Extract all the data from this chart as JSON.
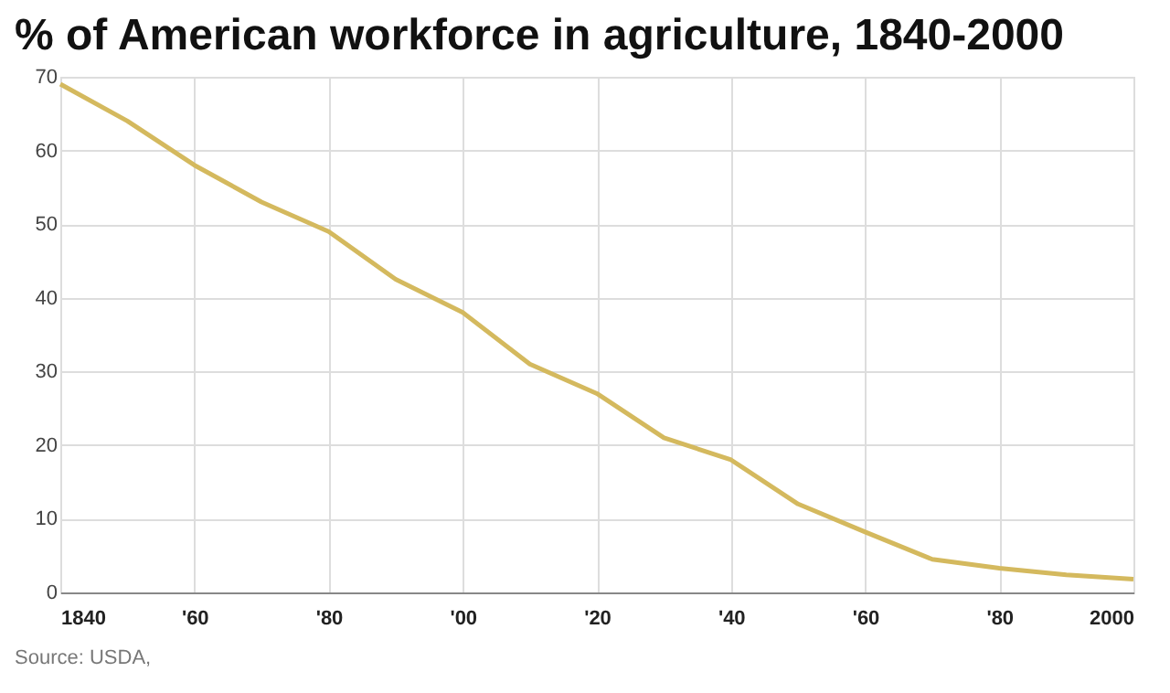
{
  "chart_data": {
    "type": "line",
    "title": "% of American workforce in agriculture, 1840-2000",
    "x": [
      1840,
      1850,
      1860,
      1870,
      1880,
      1890,
      1900,
      1910,
      1920,
      1930,
      1940,
      1950,
      1960,
      1970,
      1980,
      1990,
      2000
    ],
    "series": [
      {
        "color": "#d4b95e",
        "values": [
          69,
          64,
          58,
          53,
          49,
          42.5,
          38,
          31,
          27,
          21,
          18,
          12,
          8.2,
          4.5,
          3.3,
          2.4,
          1.8
        ]
      }
    ],
    "xlim": [
      1840,
      2000
    ],
    "xticks": [
      {
        "value": 1840,
        "label": "1840"
      },
      {
        "value": 1860,
        "label": "'60"
      },
      {
        "value": 1880,
        "label": "'80"
      },
      {
        "value": 1900,
        "label": "'00"
      },
      {
        "value": 1920,
        "label": "'20"
      },
      {
        "value": 1940,
        "label": "'40"
      },
      {
        "value": 1960,
        "label": "'60"
      },
      {
        "value": 1980,
        "label": "'80"
      },
      {
        "value": 2000,
        "label": "2000"
      }
    ],
    "ylim": [
      0,
      70
    ],
    "yticks": [
      0,
      10,
      20,
      30,
      40,
      50,
      60,
      70
    ],
    "grid": true,
    "marker": "none",
    "line_style": "solid",
    "annotations": [
      "Source: USDA,"
    ]
  }
}
